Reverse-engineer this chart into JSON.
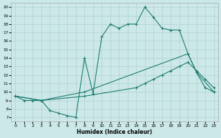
{
  "xlabel": "Humidex (Indice chaleur)",
  "bg_color": "#cce8e8",
  "line_color": "#1a7a6e",
  "grid_color": "#b0d0d0",
  "xlim": [
    -0.5,
    23.5
  ],
  "ylim": [
    6.5,
    20.5
  ],
  "yticks": [
    7,
    8,
    9,
    10,
    11,
    12,
    13,
    14,
    15,
    16,
    17,
    18,
    19,
    20
  ],
  "xticks": [
    0,
    1,
    2,
    3,
    4,
    5,
    6,
    7,
    8,
    9,
    10,
    11,
    12,
    13,
    14,
    15,
    16,
    17,
    18,
    19,
    20,
    21,
    22,
    23
  ],
  "line1_x": [
    0,
    1,
    2,
    3,
    4,
    5,
    6,
    7,
    8,
    9,
    10,
    11,
    12,
    13,
    14,
    15,
    16,
    17,
    18,
    19,
    20,
    21,
    22,
    23
  ],
  "line1_y": [
    9.5,
    9.0,
    9.0,
    9.0,
    7.8,
    7.5,
    7.2,
    7.0,
    14.0,
    9.8,
    16.5,
    18.0,
    17.5,
    18.0,
    18.0,
    20.0,
    18.8,
    17.5,
    17.3,
    17.3,
    14.5,
    12.3,
    10.5,
    10.0
  ],
  "line2_x": [
    0,
    3,
    8,
    20,
    21,
    23
  ],
  "line2_y": [
    9.5,
    9.0,
    10.0,
    14.5,
    12.3,
    10.0
  ],
  "line3_x": [
    0,
    3,
    8,
    14,
    15,
    16,
    17,
    18,
    19,
    20,
    21,
    22,
    23
  ],
  "line3_y": [
    9.5,
    9.0,
    9.5,
    10.5,
    11.0,
    11.5,
    12.0,
    12.5,
    13.0,
    13.5,
    12.5,
    11.5,
    10.5
  ]
}
